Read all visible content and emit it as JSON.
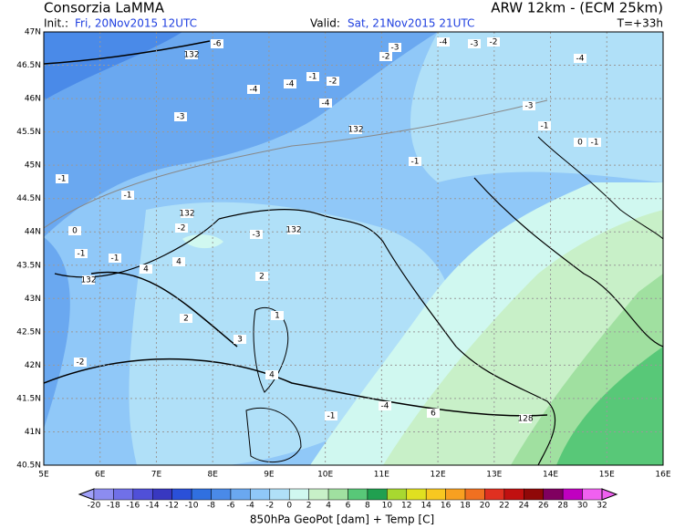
{
  "header": {
    "source": "Consorzia LaMMA",
    "model": "ARW 12km - (ECM 25km)",
    "init_label": "Init.:",
    "init": "Fri, 20Nov2015 12UTC",
    "valid_label": "Valid:",
    "valid": "Sat, 21Nov2015 21UTC",
    "lead": "T=+33h"
  },
  "map": {
    "xlim": [
      5,
      16
    ],
    "ylim": [
      40.5,
      47
    ],
    "xticks": [
      {
        "value": 5,
        "label": "5E"
      },
      {
        "value": 6,
        "label": "6E"
      },
      {
        "value": 7,
        "label": "7E"
      },
      {
        "value": 8,
        "label": "8E"
      },
      {
        "value": 9,
        "label": "9E"
      },
      {
        "value": 10,
        "label": "10E"
      },
      {
        "value": 11,
        "label": "11E"
      },
      {
        "value": 12,
        "label": "12E"
      },
      {
        "value": 13,
        "label": "13E"
      },
      {
        "value": 14,
        "label": "14E"
      },
      {
        "value": 15,
        "label": "15E"
      },
      {
        "value": 16,
        "label": "16E"
      }
    ],
    "yticks": [
      {
        "value": 47,
        "label": "47N"
      },
      {
        "value": 46.5,
        "label": "46.5N"
      },
      {
        "value": 46,
        "label": "46N"
      },
      {
        "value": 45.5,
        "label": "45.5N"
      },
      {
        "value": 45,
        "label": "45N"
      },
      {
        "value": 44.5,
        "label": "44.5N"
      },
      {
        "value": 44,
        "label": "44N"
      },
      {
        "value": 43.5,
        "label": "43.5N"
      },
      {
        "value": 43,
        "label": "43N"
      },
      {
        "value": 42.5,
        "label": "42.5N"
      },
      {
        "value": 42,
        "label": "42N"
      },
      {
        "value": 41.5,
        "label": "41.5N"
      },
      {
        "value": 41,
        "label": "41N"
      },
      {
        "value": 40.5,
        "label": "40.5N"
      }
    ],
    "contour_labels": [
      132,
      -6,
      -3,
      -2,
      -4,
      -2,
      -3,
      -4,
      -1,
      -2,
      -4,
      -4,
      -3,
      -4,
      132,
      -3,
      -1,
      0,
      -1,
      -1,
      -1,
      -1,
      132,
      -2,
      0,
      -1,
      -1,
      132,
      4,
      -3,
      132,
      4,
      2,
      2,
      1,
      3,
      4,
      -2,
      -1,
      -4,
      128,
      6
    ],
    "colorbar": {
      "ticks": [
        -20,
        -18,
        -16,
        -14,
        -12,
        -10,
        -8,
        -6,
        -4,
        -2,
        0,
        2,
        4,
        6,
        8,
        10,
        12,
        14,
        16,
        18,
        20,
        22,
        24,
        26,
        28,
        30,
        32
      ],
      "colors": [
        "#a0a0f8",
        "#8c8cf0",
        "#7070e8",
        "#5050d8",
        "#3838c0",
        "#2a50d8",
        "#3070e0",
        "#4a8ae8",
        "#6aa8f0",
        "#90c8f8",
        "#b0e0f8",
        "#d0f8f0",
        "#c8f0c8",
        "#a0e0a0",
        "#58c878",
        "#20a050",
        "#a8d830",
        "#e0e020",
        "#f8c820",
        "#f8a020",
        "#f07020",
        "#e03020",
        "#c01010",
        "#900808",
        "#800060",
        "#c000c0",
        "#f060f0"
      ]
    },
    "title": "850hPa GeoPot [dam] + Temp [C]"
  }
}
